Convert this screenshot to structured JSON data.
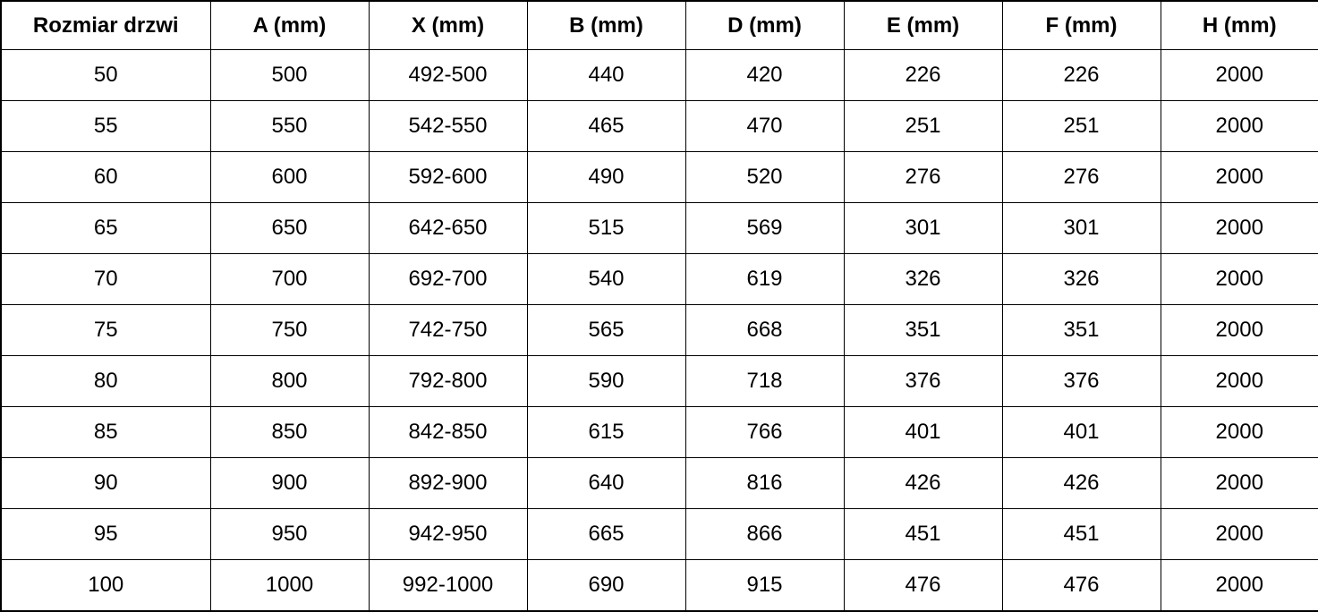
{
  "table": {
    "columns": [
      "Rozmiar drzwi",
      "A (mm)",
      "X (mm)",
      "B (mm)",
      "D (mm)",
      "E (mm)",
      "F (mm)",
      "H (mm)"
    ],
    "rows": [
      [
        "50",
        "500",
        "492-500",
        "440",
        "420",
        "226",
        "226",
        "2000"
      ],
      [
        "55",
        "550",
        "542-550",
        "465",
        "470",
        "251",
        "251",
        "2000"
      ],
      [
        "60",
        "600",
        "592-600",
        "490",
        "520",
        "276",
        "276",
        "2000"
      ],
      [
        "65",
        "650",
        "642-650",
        "515",
        "569",
        "301",
        "301",
        "2000"
      ],
      [
        "70",
        "700",
        "692-700",
        "540",
        "619",
        "326",
        "326",
        "2000"
      ],
      [
        "75",
        "750",
        "742-750",
        "565",
        "668",
        "351",
        "351",
        "2000"
      ],
      [
        "80",
        "800",
        "792-800",
        "590",
        "718",
        "376",
        "376",
        "2000"
      ],
      [
        "85",
        "850",
        "842-850",
        "615",
        "766",
        "401",
        "401",
        "2000"
      ],
      [
        "90",
        "900",
        "892-900",
        "640",
        "816",
        "426",
        "426",
        "2000"
      ],
      [
        "95",
        "950",
        "942-950",
        "665",
        "866",
        "451",
        "451",
        "2000"
      ],
      [
        "100",
        "1000",
        "992-1000",
        "690",
        "915",
        "476",
        "476",
        "2000"
      ]
    ],
    "colors": {
      "border": "#000000",
      "text": "#000000",
      "background": "#ffffff"
    }
  }
}
